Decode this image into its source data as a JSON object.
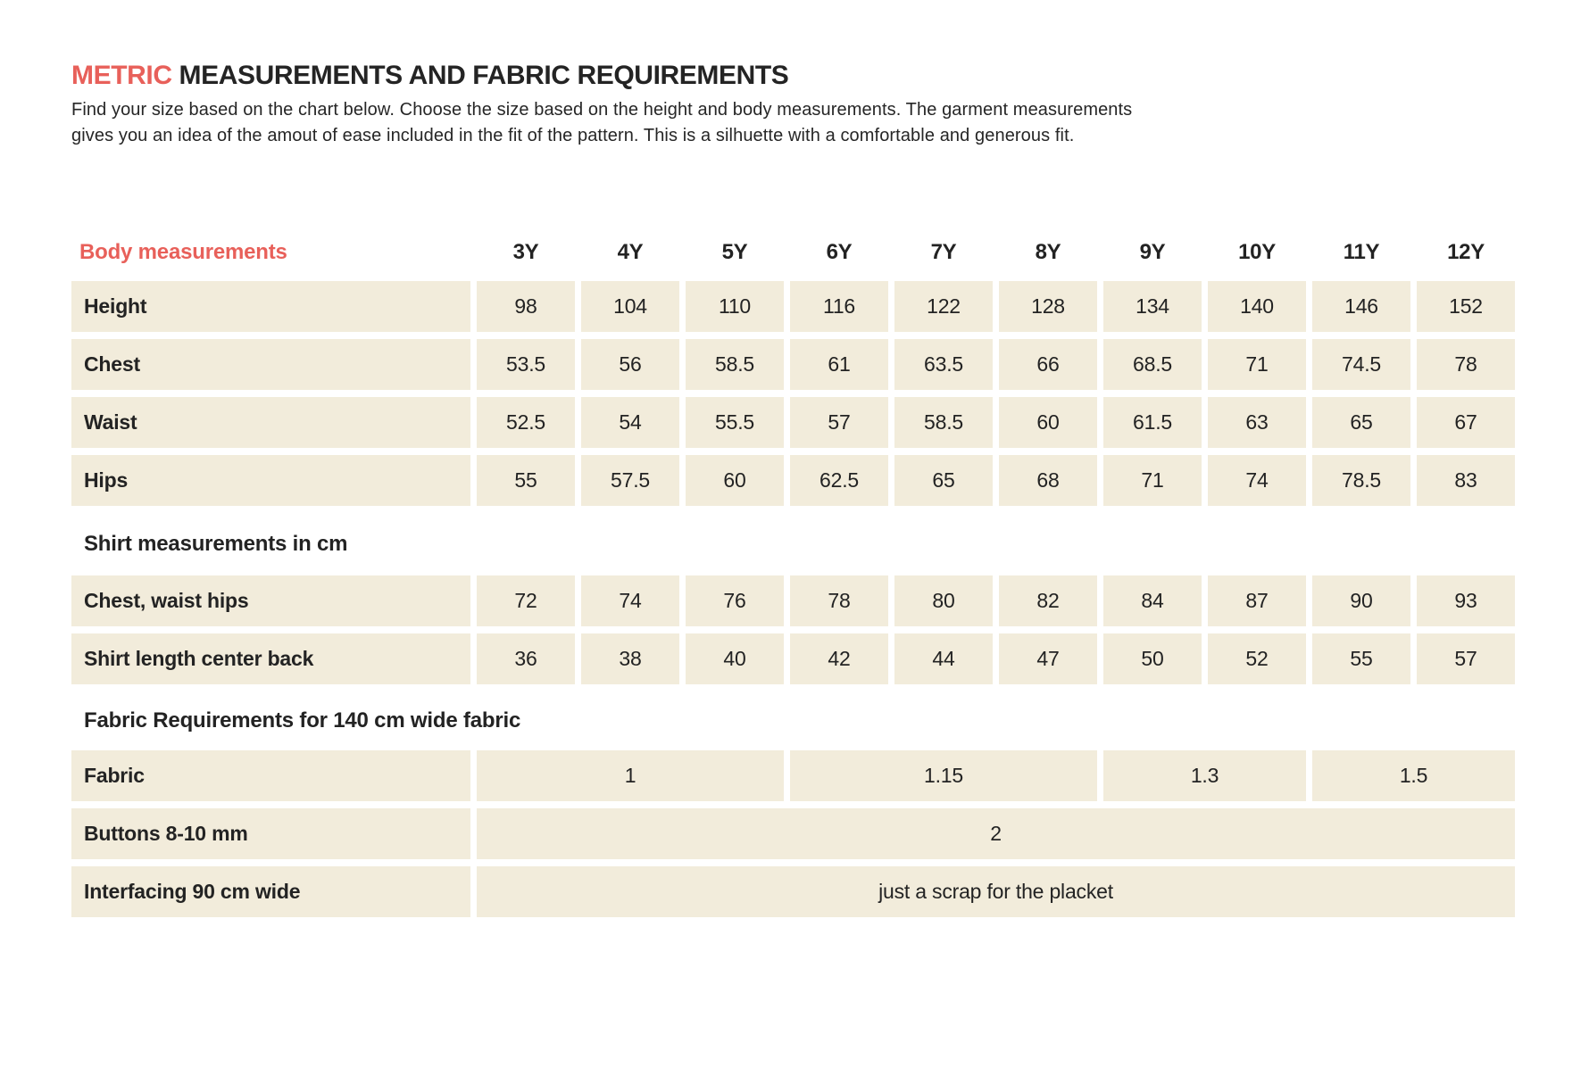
{
  "page": {
    "title_highlight": "METRIC",
    "title_rest": " MEASUREMENTS AND FABRIC REQUIREMENTS",
    "intro_lines": [
      "Find your size based on the chart below. Choose the size based on the height and body measurements. The garment measurements",
      "gives you an idea of the amout of ease included in the fit of the pattern. This is a silhuette with a comfortable and generous fit."
    ]
  },
  "colors": {
    "accent": "#e8605a",
    "cell_background": "#f2ecdb",
    "text": "#232323",
    "page_background": "#ffffff"
  },
  "size_table": {
    "header_label": "Body measurements",
    "sizes": [
      "3Y",
      "4Y",
      "5Y",
      "6Y",
      "7Y",
      "8Y",
      "9Y",
      "10Y",
      "11Y",
      "12Y"
    ],
    "body_rows": [
      {
        "label": "Height",
        "values": [
          "98",
          "104",
          "110",
          "116",
          "122",
          "128",
          "134",
          "140",
          "146",
          "152"
        ]
      },
      {
        "label": "Chest",
        "values": [
          "53.5",
          "56",
          "58.5",
          "61",
          "63.5",
          "66",
          "68.5",
          "71",
          "74.5",
          "78"
        ]
      },
      {
        "label": "Waist",
        "values": [
          "52.5",
          "54",
          "55.5",
          "57",
          "58.5",
          "60",
          "61.5",
          "63",
          "65",
          "67"
        ]
      },
      {
        "label": "Hips",
        "values": [
          "55",
          "57.5",
          "60",
          "62.5",
          "65",
          "68",
          "71",
          "74",
          "78.5",
          "83"
        ]
      }
    ],
    "shirt_section_title": "Shirt measurements in cm",
    "shirt_rows": [
      {
        "label": "Chest, waist hips",
        "values": [
          "72",
          "74",
          "76",
          "78",
          "80",
          "82",
          "84",
          "87",
          "90",
          "93"
        ]
      },
      {
        "label": "Shirt length center back",
        "values": [
          "36",
          "38",
          "40",
          "42",
          "44",
          "47",
          "50",
          "52",
          "55",
          "57"
        ]
      }
    ],
    "fabric_section_title": "Fabric Requirements for 140 cm wide fabric",
    "fabric_rows": [
      {
        "label": "Fabric",
        "cells": [
          {
            "value": "1",
            "span": 3
          },
          {
            "value": "1.15",
            "span": 3
          },
          {
            "value": "1.3",
            "span": 2
          },
          {
            "value": "1.5",
            "span": 2
          }
        ]
      },
      {
        "label": "Buttons 8-10 mm",
        "cells": [
          {
            "value": "2",
            "span": 10
          }
        ]
      },
      {
        "label": "Interfacing 90 cm wide",
        "cells": [
          {
            "value": "just a scrap for the placket",
            "span": 10
          }
        ]
      }
    ]
  }
}
